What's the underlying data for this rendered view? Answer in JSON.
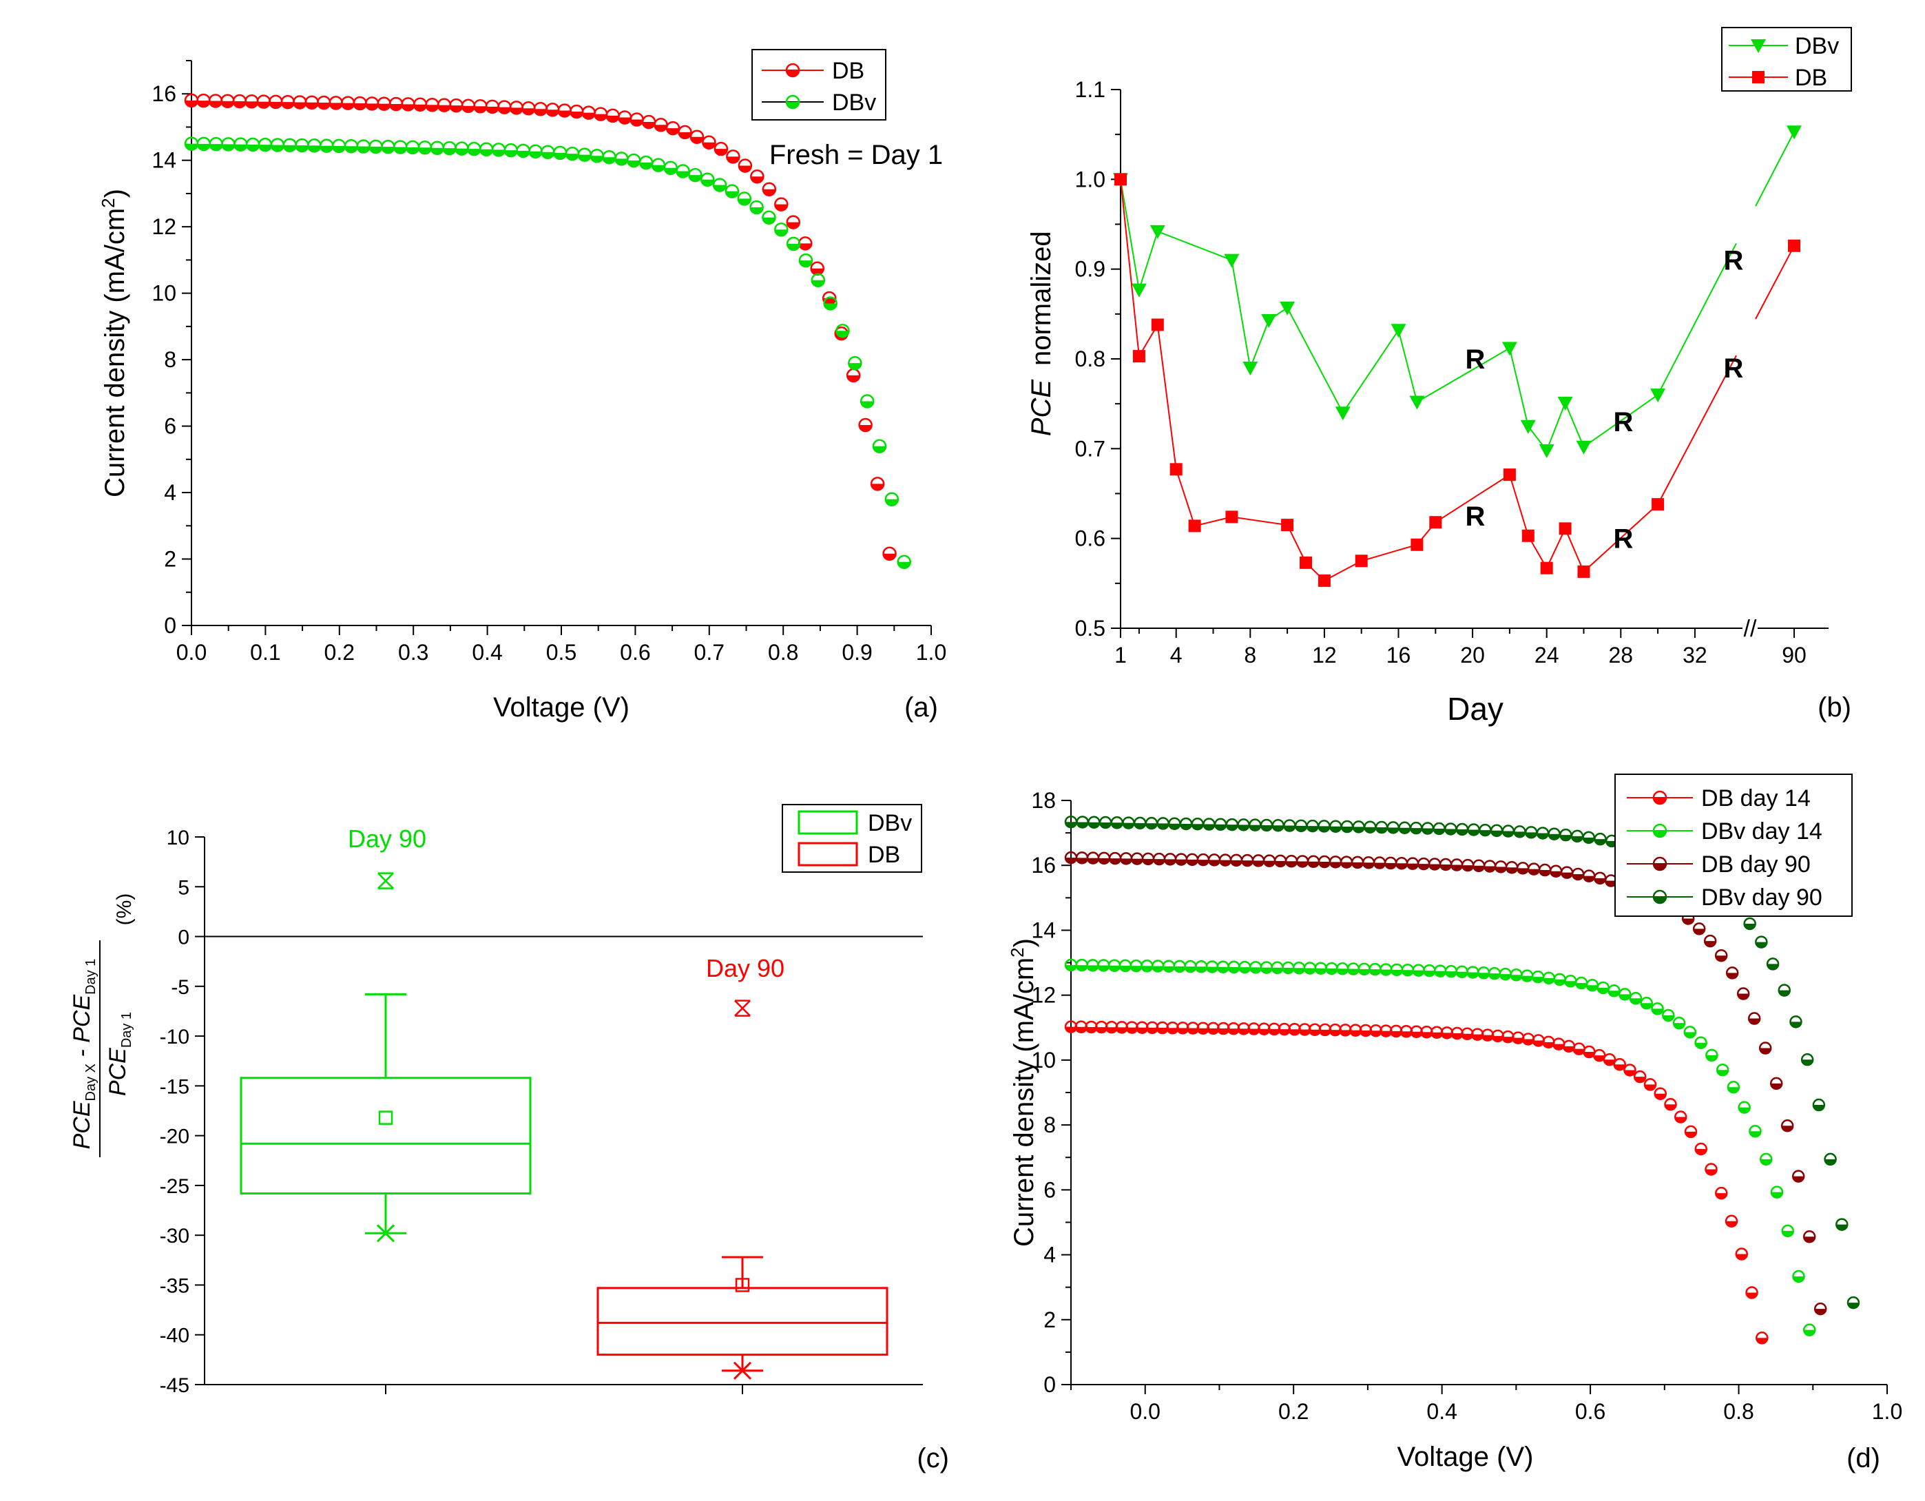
{
  "colors": {
    "red": "#ff0000",
    "green": "#00dd00",
    "darkred": "#8b0000",
    "darkgreen": "#006400",
    "black": "#000000"
  },
  "chart_data": [
    {
      "id": "a",
      "type": "scatter",
      "panel_label": "(a)",
      "xlabel": "Voltage (V)",
      "ylabel": "Current density (mA/cm2)",
      "xlim": [
        0,
        1.0
      ],
      "ylim": [
        0,
        17
      ],
      "xticks": [
        "0.0",
        "0.1",
        "0.2",
        "0.3",
        "0.4",
        "0.5",
        "0.6",
        "0.7",
        "0.8",
        "0.9",
        "1.0"
      ],
      "yticks": [
        "0",
        "2",
        "4",
        "6",
        "8",
        "10",
        "12",
        "14",
        "16"
      ],
      "annotation": "Fresh = Day 1",
      "legend_position": "top-right",
      "series": [
        {
          "name": "DB",
          "color": "red",
          "jsc": 15.8,
          "voc": 0.96,
          "n": 1.0,
          "vt": 0.095,
          "npoints": 60
        },
        {
          "name": "DBv",
          "color": "green",
          "jsc": 14.5,
          "voc": 0.98,
          "n": 1.0,
          "vt": 0.1,
          "npoints": 60
        }
      ]
    },
    {
      "id": "b",
      "type": "line",
      "panel_label": "(b)",
      "xlabel": "Day",
      "ylabel_italic": "PCE",
      "ylabel_rest": "normalized",
      "ylim": [
        0.5,
        1.1
      ],
      "xticks": [
        "1",
        "4",
        "8",
        "12",
        "16",
        "20",
        "24",
        "28",
        "32",
        "90"
      ],
      "yticks": [
        "0.5",
        "0.6",
        "0.7",
        "0.8",
        "0.9",
        "1.0",
        "1.1"
      ],
      "break_marker": "//",
      "legend_position": "top-right",
      "annotation": "R",
      "series": [
        {
          "name": "DBv",
          "color": "green",
          "marker": "triangle-down",
          "x": [
            1,
            2,
            3,
            7,
            8,
            9,
            10,
            13,
            16,
            17,
            22,
            23,
            24,
            25,
            26,
            30,
            90
          ],
          "y": [
            1.0,
            0.877,
            0.942,
            0.91,
            0.79,
            0.843,
            0.857,
            0.74,
            0.832,
            0.752,
            0.812,
            0.725,
            0.698,
            0.751,
            0.702,
            0.76,
            1.053
          ]
        },
        {
          "name": "DB",
          "color": "red",
          "marker": "square",
          "x": [
            1,
            2,
            3,
            4,
            5,
            7,
            10,
            11,
            12,
            14,
            17,
            18,
            22,
            23,
            24,
            25,
            26,
            30,
            90
          ],
          "y": [
            1.0,
            0.803,
            0.838,
            0.677,
            0.614,
            0.624,
            0.615,
            0.573,
            0.553,
            0.575,
            0.593,
            0.618,
            0.671,
            0.603,
            0.567,
            0.611,
            0.563,
            0.638,
            0.926
          ]
        }
      ],
      "R_labels_DBv_day": [
        20,
        28,
        34
      ],
      "R_labels_DB_day": [
        20,
        28,
        34
      ]
    },
    {
      "id": "c",
      "type": "box",
      "panel_label": "(c)",
      "ylabel_num_a": "PCE",
      "ylabel_num_a_sub": "Day X",
      "ylabel_num_b": " - PCE",
      "ylabel_num_b_sub": "Day 1",
      "ylabel_den": "PCE",
      "ylabel_den_sub": "Day 1",
      "ylabel_unit": "(%)",
      "ylim": [
        -45,
        10
      ],
      "yticks": [
        "10",
        "5",
        "0",
        "-5",
        "-10",
        "-15",
        "-20",
        "-25",
        "-30",
        "-35",
        "-40",
        "-45"
      ],
      "outlier_label": "Day 90",
      "legend_position": "top-right",
      "boxes": [
        {
          "name": "DBv",
          "color": "green",
          "q1": -25.8,
          "median": -20.8,
          "q3": -14.2,
          "whisker_low": -29.8,
          "whisker_high": -5.8,
          "mean": -18.2,
          "min_marker": -29.8,
          "outlier": 5.6
        },
        {
          "name": "DB",
          "color": "red",
          "q1": -42.0,
          "median": -38.8,
          "q3": -35.3,
          "whisker_low": -43.6,
          "whisker_high": -32.2,
          "mean": -35.0,
          "min_marker": -43.6,
          "outlier": -7.2
        }
      ]
    },
    {
      "id": "d",
      "type": "scatter",
      "panel_label": "(d)",
      "xlabel": "Voltage (V)",
      "ylabel": "Current density (mA/cm2)",
      "xlim": [
        -0.1,
        1.0
      ],
      "ylim": [
        0,
        18
      ],
      "xticks": [
        "0.0",
        "0.2",
        "0.4",
        "0.6",
        "0.8",
        "1.0"
      ],
      "yticks": [
        "0",
        "2",
        "4",
        "6",
        "8",
        "10",
        "12",
        "14",
        "16",
        "18"
      ],
      "legend_position": "top-right",
      "series": [
        {
          "name": "DB day 14",
          "color": "red",
          "jsc": 11.0,
          "voc": 0.845,
          "vt": 0.085,
          "npoints": 70
        },
        {
          "name": "DBv day 14",
          "color": "green",
          "jsc": 12.9,
          "voc": 0.91,
          "vt": 0.09,
          "npoints": 70
        },
        {
          "name": "DB day 90",
          "color": "darkred",
          "jsc": 16.2,
          "voc": 0.925,
          "vt": 0.083,
          "npoints": 70
        },
        {
          "name": "DBv day 90",
          "color": "darkgreen",
          "jsc": 17.3,
          "voc": 0.97,
          "vt": 0.085,
          "npoints": 70
        }
      ]
    }
  ]
}
